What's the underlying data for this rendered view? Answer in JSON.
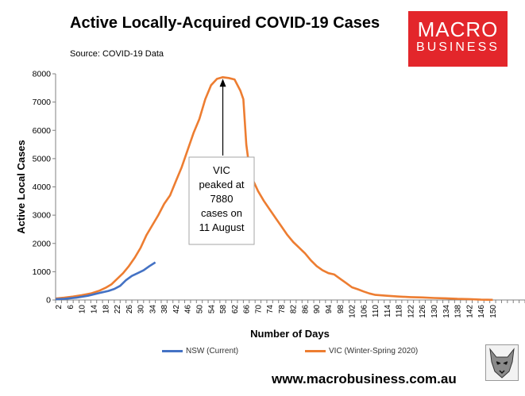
{
  "title": "Active Locally-Acquired COVID-19 Cases",
  "subtitle": "Source: COVID-19 Data",
  "logo": {
    "line1": "MACRO",
    "line2": "BUSINESS",
    "color": "#e3262b"
  },
  "website": "www.macrobusiness.com.au",
  "annotation": [
    "VIC",
    "peaked at",
    "7880",
    "cases on",
    "11 August"
  ],
  "chart_data": {
    "type": "line",
    "title": "Active Locally-Acquired COVID-19 Cases",
    "xlabel": "Number of Days",
    "ylabel": "Active Local Cases",
    "xlim": [
      1,
      161
    ],
    "ylim": [
      0,
      8000
    ],
    "yticks": [
      0,
      1000,
      2000,
      3000,
      4000,
      5000,
      6000,
      7000,
      8000
    ],
    "xtick_labels": [
      "2",
      "6",
      "10",
      "14",
      "18",
      "22",
      "26",
      "30",
      "34",
      "38",
      "42",
      "46",
      "50",
      "54",
      "58",
      "62",
      "66",
      "70",
      "74",
      "78",
      "82",
      "86",
      "90",
      "94",
      "98",
      "102",
      "106",
      "110",
      "114",
      "118",
      "122",
      "126",
      "130",
      "134",
      "138",
      "142",
      "146",
      "150"
    ],
    "grid": false,
    "legend_position": "bottom",
    "series": [
      {
        "name": "NSW (Current)",
        "color": "#4472c4",
        "x": [
          1,
          4,
          8,
          12,
          16,
          19,
          21,
          23,
          25,
          27,
          29,
          31,
          33,
          35
        ],
        "y": [
          30,
          40,
          80,
          150,
          250,
          320,
          390,
          500,
          700,
          850,
          950,
          1050,
          1200,
          1330
        ]
      },
      {
        "name": "VIC (Winter-Spring 2020)",
        "color": "#ed7d31",
        "x": [
          1,
          4,
          7,
          10,
          13,
          16,
          18,
          20,
          22,
          24,
          26,
          28,
          30,
          32,
          34,
          36,
          38,
          40,
          42,
          44,
          46,
          48,
          50,
          52,
          54,
          56,
          58,
          60,
          62,
          64,
          65,
          66,
          67,
          68,
          70,
          72,
          74,
          76,
          78,
          80,
          82,
          84,
          86,
          88,
          90,
          92,
          94,
          96,
          98,
          100,
          102,
          104,
          106,
          108,
          110,
          114,
          118,
          122,
          126,
          130,
          134,
          138,
          142,
          146,
          150
        ],
        "y": [
          50,
          80,
          120,
          170,
          230,
          330,
          430,
          550,
          750,
          950,
          1200,
          1500,
          1850,
          2300,
          2650,
          3000,
          3400,
          3700,
          4200,
          4700,
          5300,
          5900,
          6400,
          7100,
          7600,
          7820,
          7880,
          7850,
          7800,
          7400,
          7100,
          5500,
          4700,
          4300,
          3850,
          3500,
          3200,
          2900,
          2600,
          2300,
          2050,
          1850,
          1650,
          1400,
          1200,
          1050,
          950,
          900,
          750,
          600,
          450,
          380,
          300,
          230,
          180,
          150,
          120,
          100,
          90,
          70,
          60,
          40,
          30,
          10,
          5
        ]
      }
    ]
  }
}
